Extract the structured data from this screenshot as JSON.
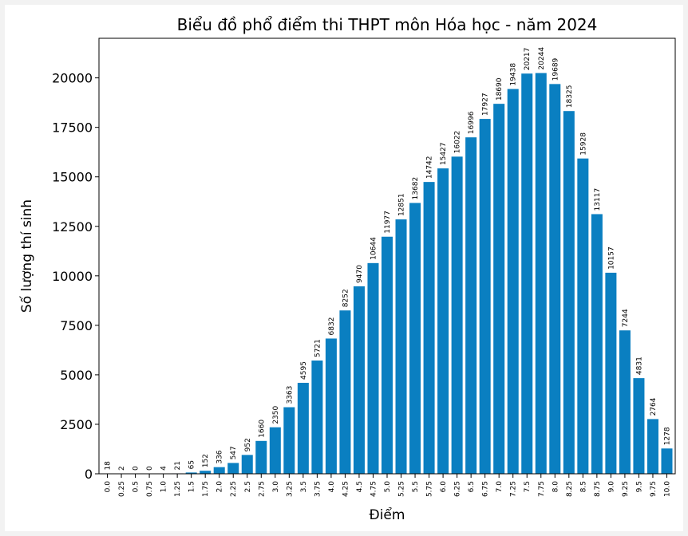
{
  "chart_data": {
    "type": "bar",
    "title": "Biểu đồ phổ điểm thi THPT môn Hóa học - năm 2024",
    "xlabel": "Điểm",
    "ylabel": "Số lượng thí sinh",
    "categories": [
      "0.0",
      "0.25",
      "0.5",
      "0.75",
      "1.0",
      "1.25",
      "1.5",
      "1.75",
      "2.0",
      "2.25",
      "2.5",
      "2.75",
      "3.0",
      "3.25",
      "3.5",
      "3.75",
      "4.0",
      "4.25",
      "4.5",
      "4.75",
      "5.0",
      "5.25",
      "5.5",
      "5.75",
      "6.0",
      "6.25",
      "6.5",
      "6.75",
      "7.0",
      "7.25",
      "7.5",
      "7.75",
      "8.0",
      "8.25",
      "8.5",
      "8.75",
      "9.0",
      "9.25",
      "9.5",
      "9.75",
      "10.0"
    ],
    "values": [
      18,
      2,
      0,
      0,
      4,
      21,
      65,
      152,
      336,
      547,
      952,
      1660,
      2350,
      3363,
      4595,
      5721,
      6832,
      8252,
      9470,
      10644,
      11977,
      12851,
      13682,
      14742,
      15427,
      16022,
      16996,
      17927,
      18690,
      19438,
      20217,
      20244,
      19689,
      18325,
      15928,
      13117,
      10157,
      7244,
      4831,
      2764,
      1278
    ],
    "ylim": [
      0,
      22000
    ],
    "yticks": [
      0,
      2500,
      5000,
      7500,
      10000,
      12500,
      15000,
      17500,
      20000
    ],
    "bar_color": "#0a7fc1",
    "grid": false,
    "legend": "none",
    "data_labels": true
  }
}
